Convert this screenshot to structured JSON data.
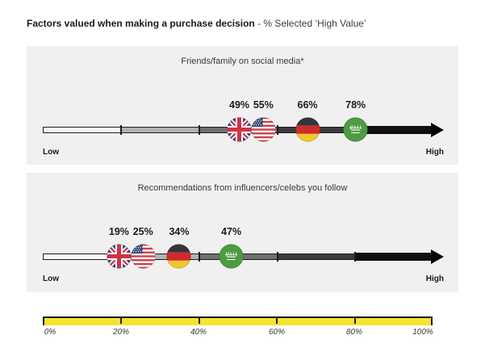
{
  "header": {
    "title_bold": "Factors valued when making a purchase decision",
    "title_rest": " - % Selected ‘High Value’"
  },
  "panels": [
    {
      "title": "Friends/family on social media*",
      "low_label": "Low",
      "high_label": "High",
      "points": [
        {
          "country": "United Kingdom",
          "flag": "uk-flag",
          "label": "49%",
          "value_pct": 49
        },
        {
          "country": "United States",
          "flag": "us-flag",
          "label": "55%",
          "value_pct": 55
        },
        {
          "country": "Germany",
          "flag": "germany-flag",
          "label": "66%",
          "value_pct": 66
        },
        {
          "country": "Saudi Arabia",
          "flag": "saudi-arabia-flag",
          "label": "78%",
          "value_pct": 78
        }
      ]
    },
    {
      "title": "Recommendations from influencers/celebs you follow",
      "low_label": "Low",
      "high_label": "High",
      "points": [
        {
          "country": "United Kingdom",
          "flag": "uk-flag",
          "label": "19%",
          "value_pct": 19
        },
        {
          "country": "United States",
          "flag": "us-flag",
          "label": "25%",
          "value_pct": 25
        },
        {
          "country": "Germany",
          "flag": "germany-flag",
          "label": "34%",
          "value_pct": 34
        },
        {
          "country": "Saudi Arabia",
          "flag": "saudi-arabia-flag",
          "label": "47%",
          "value_pct": 47
        }
      ]
    }
  ],
  "scale": {
    "tick_labels": [
      "0%",
      "20%",
      "40%",
      "60%",
      "80%",
      "100%"
    ]
  },
  "colors": {
    "panel_background": "#f0f0f0",
    "scale_yellow": "#f6e42c",
    "track_segments": [
      "#f8f8f8",
      "#b2b2b2",
      "#6f6f6f",
      "#3b3b3b",
      "#101010"
    ],
    "uk_blue": "#2a3d87",
    "flag_red": "#cf3345",
    "germany_gold": "#f2c72e",
    "saudi_green": "#4d9b43"
  },
  "chart_data": {
    "type": "scatter",
    "title": "Factors valued when making a purchase decision - % Selected ‘High Value’",
    "categories": [
      "Friends/family on social media*",
      "Recommendations from influencers/celebs you follow"
    ],
    "series": [
      {
        "name": "United Kingdom",
        "values": [
          49,
          19
        ]
      },
      {
        "name": "United States",
        "values": [
          55,
          25
        ]
      },
      {
        "name": "Germany",
        "values": [
          66,
          34
        ]
      },
      {
        "name": "Saudi Arabia",
        "values": [
          78,
          47
        ]
      }
    ],
    "xlabel": "% Selected ‘High Value’",
    "xlim": [
      0,
      100
    ],
    "x_ticks": [
      "0%",
      "20%",
      "40%",
      "60%",
      "80%",
      "100%"
    ],
    "axis_endpoint_labels": [
      "Low",
      "High"
    ],
    "legend_position": "none",
    "grid": false
  }
}
